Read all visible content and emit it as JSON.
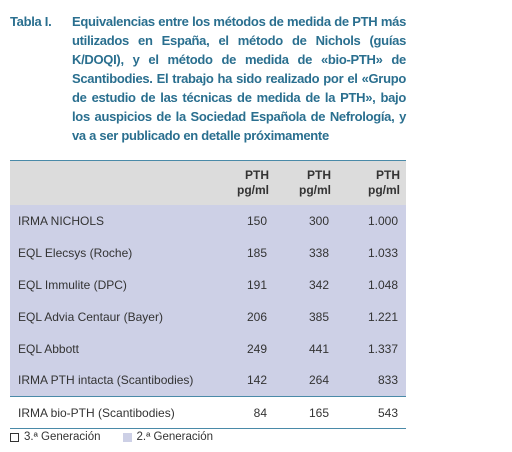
{
  "caption": {
    "label": "Tabla I.",
    "text": "Equivalencias entre los métodos de medida de PTH más utilizados en España, el método de Nichols (guías K/DOQI), y el método de medida de «bio-PTH» de Scantibodies. El trabajo ha sido realizado por el «Grupo de estudio de las técnicas de medida de la PTH», bajo los auspicios de la Sociedad Española de Nefrología, y va a ser publicado en detalle próximamente"
  },
  "table": {
    "header": [
      [
        "PTH",
        "pg/ml"
      ],
      [
        "PTH",
        "pg/ml"
      ],
      [
        "PTH",
        "pg/ml"
      ]
    ],
    "rows": [
      [
        "IRMA NICHOLS",
        "150",
        "300",
        "1.000"
      ],
      [
        "EQL Elecsys (Roche)",
        "185",
        "338",
        "1.033"
      ],
      [
        "EQL Immulite (DPC)",
        "191",
        "342",
        "1.048"
      ],
      [
        "EQL Advia Centaur (Bayer)",
        "206",
        "385",
        "1.221"
      ],
      [
        "EQL Abbott",
        "249",
        "441",
        "1.337"
      ],
      [
        "IRMA PTH intacta (Scantibodies)",
        "142",
        "264",
        "833"
      ],
      [
        "IRMA bio-PTH (Scantibodies)",
        "84",
        "165",
        "543"
      ]
    ],
    "row_generation": [
      2,
      2,
      2,
      2,
      2,
      2,
      3
    ]
  },
  "legend": [
    {
      "generation": 3,
      "label": "3.ª Generación"
    },
    {
      "generation": 2,
      "label": "2.ª Generación"
    }
  ]
}
